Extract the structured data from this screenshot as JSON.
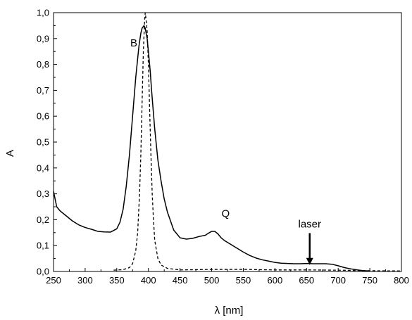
{
  "chart_data": {
    "type": "line",
    "xlabel": "λ [nm]",
    "ylabel": "A",
    "xlim": [
      250,
      800
    ],
    "ylim": [
      0,
      1.0
    ],
    "x_ticks": [
      250,
      300,
      350,
      400,
      450,
      500,
      550,
      600,
      650,
      700,
      750,
      800
    ],
    "x_tick_labels": [
      "250",
      "300",
      "350",
      "400",
      "450",
      "500",
      "550",
      "600",
      "650",
      "700",
      "750",
      "800"
    ],
    "y_ticks": [
      0,
      0.1,
      0.2,
      0.3,
      0.4,
      0.5,
      0.6,
      0.7,
      0.8,
      0.9,
      1.0
    ],
    "y_tick_labels": [
      "0,0",
      "0,1",
      "0,2",
      "0,3",
      "0,4",
      "0,5",
      "0,6",
      "0,7",
      "0,8",
      "0,9",
      "1,0"
    ],
    "grid": false,
    "series": [
      {
        "style": "solid",
        "x": [
          250,
          255,
          260,
          270,
          280,
          290,
          300,
          310,
          320,
          330,
          340,
          350,
          355,
          360,
          365,
          370,
          375,
          380,
          385,
          388,
          390,
          393,
          395,
          398,
          400,
          403,
          405,
          410,
          415,
          420,
          425,
          430,
          440,
          450,
          460,
          470,
          480,
          490,
          495,
          500,
          505,
          510,
          515,
          520,
          530,
          540,
          550,
          560,
          570,
          580,
          590,
          600,
          610,
          620,
          630,
          640,
          650,
          660,
          670,
          680,
          690,
          700,
          710,
          720,
          730,
          740,
          750
        ],
        "y": [
          0.31,
          0.25,
          0.235,
          0.215,
          0.195,
          0.18,
          0.17,
          0.163,
          0.155,
          0.153,
          0.152,
          0.165,
          0.19,
          0.24,
          0.33,
          0.45,
          0.6,
          0.75,
          0.87,
          0.92,
          0.94,
          0.95,
          0.94,
          0.9,
          0.85,
          0.77,
          0.7,
          0.55,
          0.43,
          0.35,
          0.28,
          0.23,
          0.16,
          0.13,
          0.125,
          0.128,
          0.135,
          0.14,
          0.148,
          0.155,
          0.155,
          0.145,
          0.13,
          0.12,
          0.105,
          0.09,
          0.075,
          0.062,
          0.052,
          0.045,
          0.04,
          0.035,
          0.032,
          0.031,
          0.03,
          0.03,
          0.031,
          0.03,
          0.03,
          0.03,
          0.028,
          0.022,
          0.015,
          0.01,
          0.006,
          0.003,
          0.002
        ]
      },
      {
        "style": "dashed",
        "x": [
          345,
          360,
          370,
          375,
          380,
          383,
          386,
          388,
          390,
          392,
          394,
          395,
          396,
          398,
          400,
          402,
          404,
          406,
          408,
          410,
          415,
          420,
          430,
          450,
          500,
          550,
          600,
          650,
          700,
          750,
          800
        ],
        "y": [
          0.005,
          0.007,
          0.015,
          0.03,
          0.08,
          0.15,
          0.3,
          0.45,
          0.65,
          0.85,
          0.97,
          1.0,
          0.98,
          0.93,
          0.8,
          0.62,
          0.45,
          0.3,
          0.2,
          0.12,
          0.05,
          0.025,
          0.012,
          0.006,
          0.008,
          0.008,
          0.006,
          0.006,
          0.005,
          0.003,
          0.002
        ]
      }
    ],
    "annotations": [
      {
        "text": "B",
        "x": 377,
        "y": 0.87
      },
      {
        "text": "Q",
        "x": 522,
        "y": 0.21
      },
      {
        "text": "laser",
        "x": 655,
        "y": 0.17,
        "arrow_to": [
          655,
          0.025
        ]
      }
    ]
  }
}
